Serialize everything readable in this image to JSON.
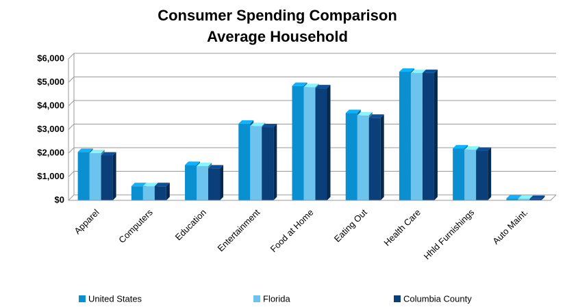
{
  "chart_data": {
    "type": "bar",
    "title": "Consumer Spending Comparison",
    "subtitle": "Average Household",
    "categories": [
      "Apparel",
      "Computers",
      "Education",
      "Entertainment",
      "Food at Home",
      "Eating Out",
      "Health Care",
      "Hhld Furnishings",
      "Auto Maint."
    ],
    "series": [
      {
        "name": "United States",
        "color": "#0a8fd0",
        "values": [
          2050,
          600,
          1500,
          3250,
          4850,
          3700,
          5450,
          2200,
          80
        ]
      },
      {
        "name": "Florida",
        "color": "#6cc4ee",
        "values": [
          2000,
          600,
          1450,
          3150,
          4800,
          3600,
          5400,
          2150,
          70
        ]
      },
      {
        "name": "Columbia County",
        "color": "#0a3f7a",
        "values": [
          1900,
          600,
          1350,
          3100,
          4750,
          3500,
          5400,
          2100,
          60
        ]
      }
    ],
    "ylim": [
      0,
      6000
    ],
    "yticks": [
      {
        "value": 0,
        "label": "$0"
      },
      {
        "value": 1000,
        "label": "$1,000"
      },
      {
        "value": 2000,
        "label": "$2,000"
      },
      {
        "value": 3000,
        "label": "$3,000"
      },
      {
        "value": 4000,
        "label": "$4,000"
      },
      {
        "value": 5000,
        "label": "$5,000"
      },
      {
        "value": 6000,
        "label": "$6,000"
      }
    ],
    "grid": true
  }
}
